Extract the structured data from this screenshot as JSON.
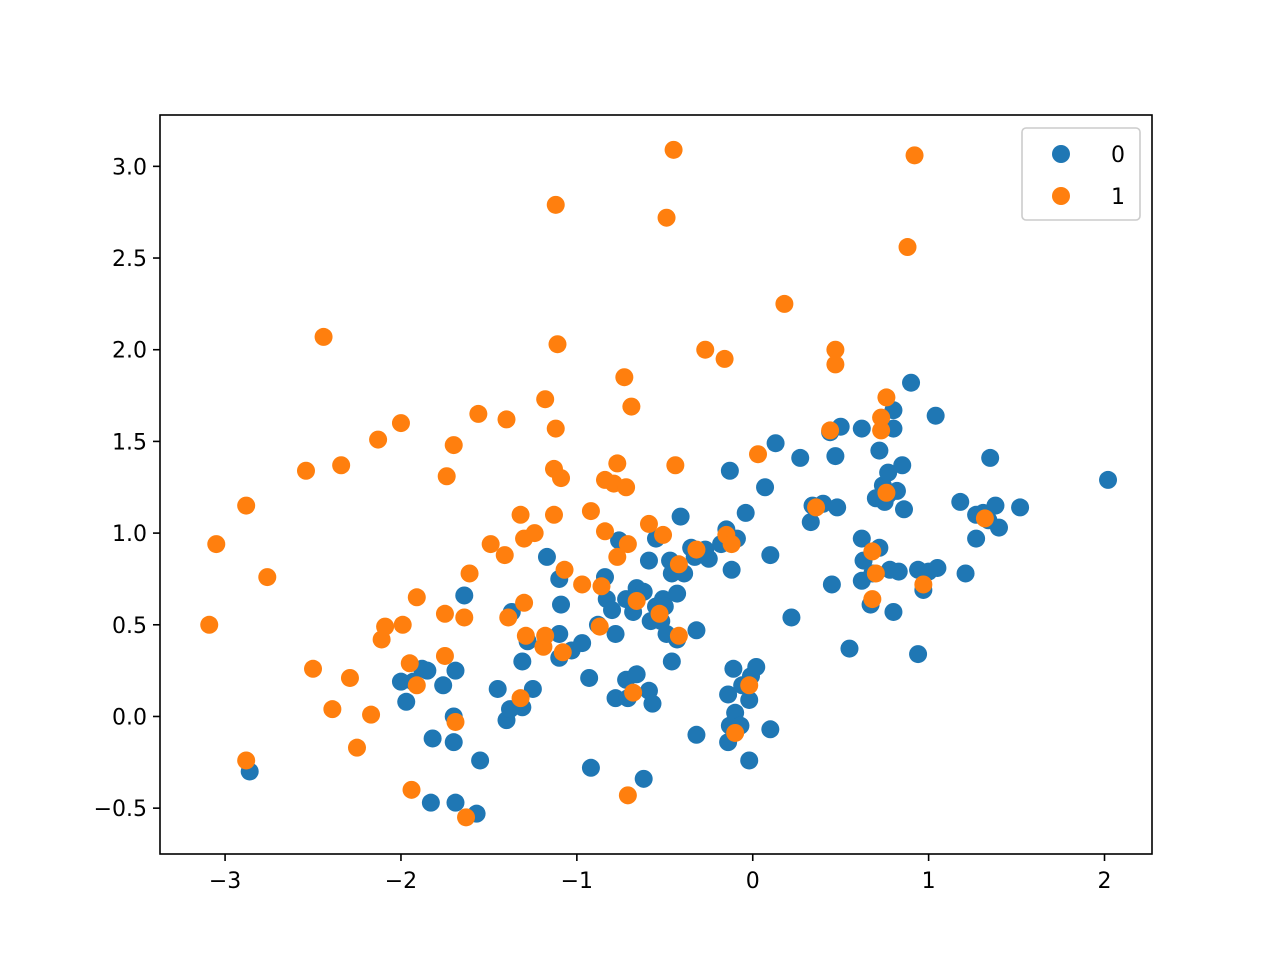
{
  "chart_data": {
    "type": "scatter",
    "title": "",
    "xlabel": "",
    "ylabel": "",
    "xlim": [
      -3.37,
      2.27
    ],
    "ylim": [
      -0.75,
      3.28
    ],
    "xticks": [
      -3,
      -2,
      -1,
      0,
      1,
      2
    ],
    "yticks": [
      -0.5,
      0.0,
      0.5,
      1.0,
      1.5,
      2.0,
      2.5,
      3.0
    ],
    "xtick_labels": [
      "−3",
      "−2",
      "−1",
      "0",
      "1",
      "2"
    ],
    "ytick_labels": [
      "−0.5",
      "0.0",
      "0.5",
      "1.0",
      "1.5",
      "2.0",
      "2.5",
      "3.0"
    ],
    "grid": false,
    "legend": {
      "position": "upper right"
    },
    "series": [
      {
        "name": "0",
        "color": "#1f77b4",
        "points": [
          [
            -2.86,
            -0.3
          ],
          [
            -2.0,
            0.19
          ],
          [
            -1.97,
            0.08
          ],
          [
            -1.93,
            0.19
          ],
          [
            -1.88,
            0.26
          ],
          [
            -1.85,
            0.25
          ],
          [
            -1.82,
            -0.12
          ],
          [
            -1.83,
            -0.47
          ],
          [
            -1.76,
            0.17
          ],
          [
            -1.69,
            0.25
          ],
          [
            -1.7,
            0.0
          ],
          [
            -1.7,
            -0.14
          ],
          [
            -1.69,
            -0.47
          ],
          [
            -1.64,
            0.66
          ],
          [
            -1.57,
            -0.53
          ],
          [
            -1.55,
            -0.24
          ],
          [
            -1.45,
            0.15
          ],
          [
            -1.4,
            -0.02
          ],
          [
            -1.38,
            0.04
          ],
          [
            -1.37,
            0.57
          ],
          [
            -1.31,
            0.05
          ],
          [
            -1.31,
            0.3
          ],
          [
            -1.28,
            0.41
          ],
          [
            -1.25,
            0.15
          ],
          [
            -1.17,
            0.87
          ],
          [
            -1.1,
            0.45
          ],
          [
            -1.1,
            0.32
          ],
          [
            -1.1,
            0.75
          ],
          [
            -1.09,
            0.61
          ],
          [
            -1.03,
            0.36
          ],
          [
            -0.97,
            0.4
          ],
          [
            -0.93,
            0.21
          ],
          [
            -0.92,
            -0.28
          ],
          [
            -0.88,
            0.5
          ],
          [
            -0.83,
            0.64
          ],
          [
            -0.84,
            0.76
          ],
          [
            -0.8,
            0.58
          ],
          [
            -0.78,
            0.45
          ],
          [
            -0.78,
            0.1
          ],
          [
            -0.76,
            0.96
          ],
          [
            -0.72,
            0.64
          ],
          [
            -0.72,
            0.2
          ],
          [
            -0.71,
            0.1
          ],
          [
            -0.68,
            0.57
          ],
          [
            -0.66,
            0.7
          ],
          [
            -0.66,
            0.23
          ],
          [
            -0.62,
            0.68
          ],
          [
            -0.62,
            -0.34
          ],
          [
            -0.59,
            0.85
          ],
          [
            -0.59,
            0.14
          ],
          [
            -0.58,
            0.52
          ],
          [
            -0.57,
            0.07
          ],
          [
            -0.55,
            0.97
          ],
          [
            -0.55,
            0.6
          ],
          [
            -0.52,
            0.52
          ],
          [
            -0.51,
            0.64
          ],
          [
            -0.5,
            0.6
          ],
          [
            -0.49,
            0.45
          ],
          [
            -0.47,
            0.85
          ],
          [
            -0.46,
            0.3
          ],
          [
            -0.46,
            0.78
          ],
          [
            -0.43,
            0.67
          ],
          [
            -0.43,
            0.42
          ],
          [
            -0.41,
            1.09
          ],
          [
            -0.39,
            0.78
          ],
          [
            -0.35,
            0.92
          ],
          [
            -0.33,
            0.87
          ],
          [
            -0.32,
            0.47
          ],
          [
            -0.32,
            -0.1
          ],
          [
            -0.27,
            0.91
          ],
          [
            -0.25,
            0.86
          ],
          [
            -0.18,
            0.94
          ],
          [
            -0.15,
            1.02
          ],
          [
            -0.14,
            0.12
          ],
          [
            -0.14,
            -0.14
          ],
          [
            -0.13,
            -0.05
          ],
          [
            -0.13,
            1.34
          ],
          [
            -0.12,
            0.8
          ],
          [
            -0.11,
            0.26
          ],
          [
            -0.1,
            0.02
          ],
          [
            -0.09,
            0.97
          ],
          [
            -0.07,
            -0.05
          ],
          [
            -0.06,
            0.17
          ],
          [
            -0.04,
            1.11
          ],
          [
            -0.02,
            -0.24
          ],
          [
            -0.02,
            0.09
          ],
          [
            -0.01,
            0.22
          ],
          [
            0.02,
            0.27
          ],
          [
            0.07,
            1.25
          ],
          [
            0.1,
            0.88
          ],
          [
            0.1,
            -0.07
          ],
          [
            0.13,
            1.49
          ],
          [
            0.22,
            0.54
          ],
          [
            0.27,
            1.41
          ],
          [
            0.33,
            1.06
          ],
          [
            0.34,
            1.15
          ],
          [
            0.4,
            1.16
          ],
          [
            0.44,
            1.55
          ],
          [
            0.45,
            0.72
          ],
          [
            0.47,
            1.42
          ],
          [
            0.48,
            1.14
          ],
          [
            0.5,
            1.58
          ],
          [
            0.55,
            0.37
          ],
          [
            0.62,
            1.57
          ],
          [
            0.62,
            0.97
          ],
          [
            0.62,
            0.74
          ],
          [
            0.63,
            0.85
          ],
          [
            0.67,
            0.61
          ],
          [
            0.68,
            0.78
          ],
          [
            0.7,
            1.19
          ],
          [
            0.72,
            1.45
          ],
          [
            0.72,
            0.92
          ],
          [
            0.74,
            1.26
          ],
          [
            0.75,
            1.17
          ],
          [
            0.77,
            1.21
          ],
          [
            0.77,
            1.33
          ],
          [
            0.78,
            0.8
          ],
          [
            0.8,
            1.67
          ],
          [
            0.8,
            0.57
          ],
          [
            0.8,
            1.57
          ],
          [
            0.82,
            1.23
          ],
          [
            0.83,
            0.79
          ],
          [
            0.85,
            1.37
          ],
          [
            0.86,
            1.13
          ],
          [
            0.9,
            1.82
          ],
          [
            0.94,
            0.8
          ],
          [
            0.94,
            0.34
          ],
          [
            0.97,
            0.69
          ],
          [
            1.0,
            0.79
          ],
          [
            1.04,
            1.64
          ],
          [
            1.05,
            0.81
          ],
          [
            1.18,
            1.17
          ],
          [
            1.21,
            0.78
          ],
          [
            1.27,
            1.1
          ],
          [
            1.27,
            0.97
          ],
          [
            1.31,
            1.11
          ],
          [
            1.34,
            1.07
          ],
          [
            1.35,
            1.41
          ],
          [
            1.38,
            1.15
          ],
          [
            1.4,
            1.03
          ],
          [
            1.52,
            1.14
          ],
          [
            2.02,
            1.29
          ]
        ]
      },
      {
        "name": "1",
        "color": "#ff7f0e",
        "points": [
          [
            -3.09,
            0.5
          ],
          [
            -3.05,
            0.94
          ],
          [
            -2.88,
            1.15
          ],
          [
            -2.88,
            -0.24
          ],
          [
            -2.76,
            0.76
          ],
          [
            -2.54,
            1.34
          ],
          [
            -2.5,
            0.26
          ],
          [
            -2.44,
            2.07
          ],
          [
            -2.39,
            0.04
          ],
          [
            -2.34,
            1.37
          ],
          [
            -2.29,
            0.21
          ],
          [
            -2.25,
            -0.17
          ],
          [
            -2.17,
            0.01
          ],
          [
            -2.13,
            1.51
          ],
          [
            -2.11,
            0.42
          ],
          [
            -2.09,
            0.49
          ],
          [
            -2.0,
            1.6
          ],
          [
            -1.99,
            0.5
          ],
          [
            -1.95,
            0.29
          ],
          [
            -1.94,
            -0.4
          ],
          [
            -1.91,
            0.65
          ],
          [
            -1.91,
            0.17
          ],
          [
            -1.75,
            0.56
          ],
          [
            -1.75,
            0.33
          ],
          [
            -1.74,
            1.31
          ],
          [
            -1.7,
            1.48
          ],
          [
            -1.69,
            -0.03
          ],
          [
            -1.64,
            0.54
          ],
          [
            -1.63,
            -0.55
          ],
          [
            -1.61,
            0.78
          ],
          [
            -1.56,
            1.65
          ],
          [
            -1.49,
            0.94
          ],
          [
            -1.41,
            0.88
          ],
          [
            -1.4,
            1.62
          ],
          [
            -1.39,
            0.54
          ],
          [
            -1.32,
            1.1
          ],
          [
            -1.32,
            0.1
          ],
          [
            -1.3,
            0.62
          ],
          [
            -1.3,
            0.97
          ],
          [
            -1.29,
            0.44
          ],
          [
            -1.24,
            1.0
          ],
          [
            -1.19,
            0.38
          ],
          [
            -1.18,
            1.73
          ],
          [
            -1.18,
            0.44
          ],
          [
            -1.13,
            1.35
          ],
          [
            -1.13,
            1.1
          ],
          [
            -1.12,
            2.79
          ],
          [
            -1.12,
            1.57
          ],
          [
            -1.11,
            2.03
          ],
          [
            -1.09,
            1.3
          ],
          [
            -1.08,
            0.35
          ],
          [
            -1.07,
            0.8
          ],
          [
            -0.97,
            0.72
          ],
          [
            -0.92,
            1.12
          ],
          [
            -0.87,
            0.49
          ],
          [
            -0.86,
            0.71
          ],
          [
            -0.84,
            1.01
          ],
          [
            -0.84,
            1.29
          ],
          [
            -0.77,
            1.38
          ],
          [
            -0.77,
            0.87
          ],
          [
            -0.79,
            1.27
          ],
          [
            -0.73,
            1.85
          ],
          [
            -0.72,
            1.25
          ],
          [
            -0.71,
            0.94
          ],
          [
            -0.71,
            -0.43
          ],
          [
            -0.69,
            1.69
          ],
          [
            -0.68,
            0.13
          ],
          [
            -0.66,
            0.63
          ],
          [
            -0.59,
            1.05
          ],
          [
            -0.53,
            0.56
          ],
          [
            -0.51,
            0.99
          ],
          [
            -0.49,
            2.72
          ],
          [
            -0.45,
            3.09
          ],
          [
            -0.44,
            1.37
          ],
          [
            -0.42,
            0.44
          ],
          [
            -0.42,
            0.83
          ],
          [
            -0.32,
            0.91
          ],
          [
            -0.27,
            2.0
          ],
          [
            -0.16,
            1.95
          ],
          [
            -0.15,
            0.99
          ],
          [
            -0.12,
            0.94
          ],
          [
            -0.1,
            -0.09
          ],
          [
            -0.02,
            0.17
          ],
          [
            0.03,
            1.43
          ],
          [
            0.18,
            2.25
          ],
          [
            0.36,
            1.14
          ],
          [
            0.44,
            1.56
          ],
          [
            0.47,
            2.0
          ],
          [
            0.47,
            1.92
          ],
          [
            0.68,
            0.64
          ],
          [
            0.68,
            0.9
          ],
          [
            0.7,
            0.78
          ],
          [
            0.73,
            1.56
          ],
          [
            0.73,
            1.63
          ],
          [
            0.76,
            1.22
          ],
          [
            0.76,
            1.74
          ],
          [
            0.88,
            2.56
          ],
          [
            0.92,
            3.06
          ],
          [
            0.97,
            0.72
          ],
          [
            1.32,
            1.08
          ]
        ]
      }
    ]
  }
}
